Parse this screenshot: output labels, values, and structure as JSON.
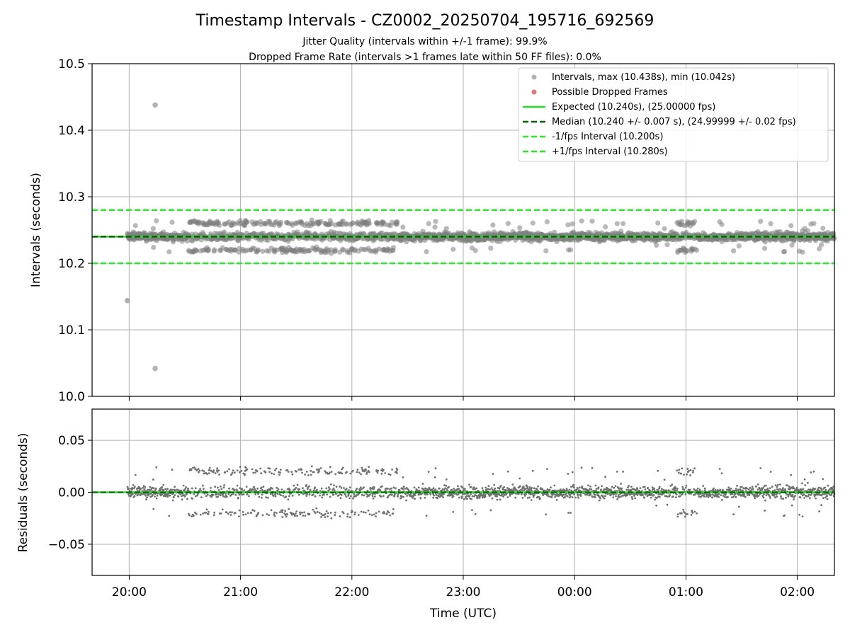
{
  "figure": {
    "title": "Timestamp Intervals - CZ0002_20250704_195716_692569",
    "subtitle_1": "Jitter Quality (intervals within +/-1 frame): 99.9%",
    "subtitle_2": "Dropped Frame Rate (intervals >1 frames late within 50 FF files): 0.0%"
  },
  "colors": {
    "interval_points": "#808080",
    "dropped_frames": "#e8424a",
    "expected": "#22dd22",
    "median": "#006400",
    "fps_bounds": "#22ee22",
    "residual_points": "#707070",
    "grid": "#b0b0b0"
  },
  "chart_data": [
    {
      "type": "scatter",
      "ylabel": "Intervals (seconds)",
      "ylim": [
        10.0,
        10.5
      ],
      "y_ticks": [
        "10.0",
        "10.1",
        "10.2",
        "10.3",
        "10.4",
        "10.5"
      ],
      "xlim": [
        "19:40",
        "02:20"
      ],
      "x_ticks": [
        "20:00",
        "21:00",
        "22:00",
        "23:00",
        "00:00",
        "01:00",
        "02:00"
      ],
      "grid": true,
      "legend_position": "top-right",
      "legend": [
        "Intervals, max (10.438s), min (10.042s)",
        "Possible Dropped Frames",
        "Expected (10.240s), (25.00000 fps)",
        "Median (10.240 +/- 0.007 s), (24.99999 +/- 0.02 fps)",
        "-1/fps Interval (10.200s)",
        "+1/fps Interval (10.280s)"
      ],
      "reference_lines": {
        "expected": 10.24,
        "median": 10.24,
        "minus_1_fps": 10.2,
        "plus_1_fps": 10.28
      },
      "outliers": [
        {
          "time": "19:59",
          "value": 10.144
        },
        {
          "time": "20:14",
          "value": 10.438
        },
        {
          "time": "20:14",
          "value": 10.042
        }
      ],
      "dropped_frames": [],
      "series_segments": [
        {
          "start": "19:59",
          "end": "20:32",
          "spread": 0.007,
          "step": 0.01
        },
        {
          "start": "20:32",
          "end": "22:25",
          "spread": 0.009,
          "step": 0.02
        },
        {
          "start": "22:25",
          "end": "00:55",
          "spread": 0.007,
          "step": 0.01
        },
        {
          "start": "00:55",
          "end": "01:05",
          "spread": 0.009,
          "step": 0.02
        },
        {
          "start": "01:05",
          "end": "02:20",
          "spread": 0.007,
          "step": 0.01
        }
      ]
    },
    {
      "type": "scatter",
      "xlabel": "Time (UTC)",
      "ylabel": "Residuals (seconds)",
      "ylim": [
        -0.08,
        0.08
      ],
      "y_ticks": [
        "−0.05",
        "0.00",
        "0.05"
      ],
      "y_tick_values": [
        -0.05,
        0.0,
        0.05
      ],
      "reference_line": 0.0,
      "grid": true
    }
  ]
}
